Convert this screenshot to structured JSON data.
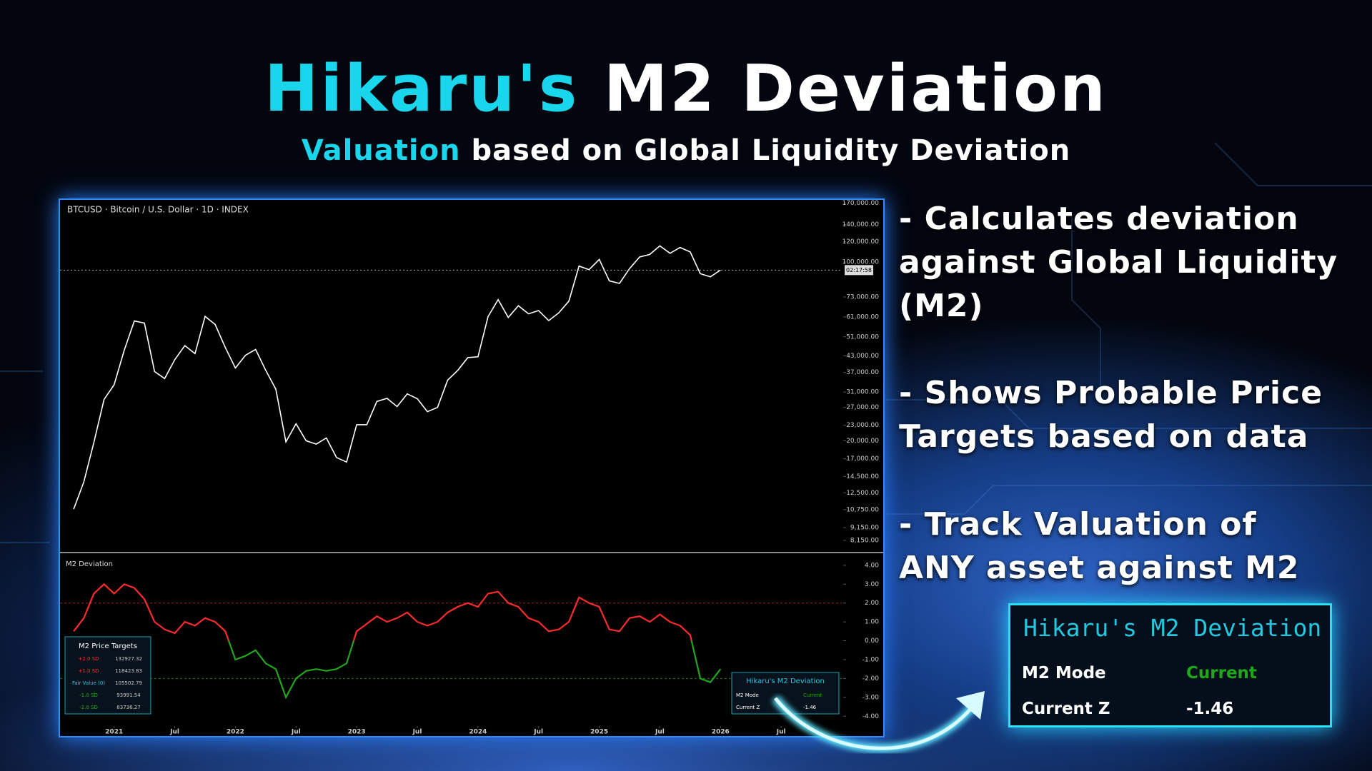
{
  "title": {
    "highlight": "Hikaru's",
    "rest": "M2 Deviation"
  },
  "subtitle": {
    "highlight": "Valuation",
    "rest": "based on Global Liquidity Deviation"
  },
  "features": [
    {
      "lines": [
        "- Calculates deviation",
        "against Global Liquidity",
        "(M2)"
      ]
    },
    {
      "lines": [
        "- Shows Probable Price",
        "Targets based on data"
      ]
    },
    {
      "lines": [
        "- Track Valuation of",
        "ANY asset against M2"
      ]
    }
  ],
  "price_chart": {
    "type": "line",
    "header": "BTCUSD · Bitcoin / U.S. Dollar · 1D · INDEX",
    "price_label": "02:17:58",
    "color": "#ffffff",
    "log_scale": true,
    "x": [
      "2020-09",
      "2020-10",
      "2020-11",
      "2020-12",
      "2021-01",
      "2021-02",
      "2021-03",
      "2021-04",
      "2021-05",
      "2021-06",
      "2021-07",
      "2021-08",
      "2021-09",
      "2021-10",
      "2021-11",
      "2021-12",
      "2022-01",
      "2022-02",
      "2022-03",
      "2022-04",
      "2022-05",
      "2022-06",
      "2022-07",
      "2022-08",
      "2022-09",
      "2022-10",
      "2022-11",
      "2022-12",
      "2023-01",
      "2023-02",
      "2023-03",
      "2023-04",
      "2023-05",
      "2023-06",
      "2023-07",
      "2023-08",
      "2023-09",
      "2023-10",
      "2023-11",
      "2023-12",
      "2024-01",
      "2024-02",
      "2024-03",
      "2024-04",
      "2024-05",
      "2024-06",
      "2024-07",
      "2024-08",
      "2024-09",
      "2024-10",
      "2024-11",
      "2024-12",
      "2025-01",
      "2025-02",
      "2025-03",
      "2025-04",
      "2025-05",
      "2025-06",
      "2025-07",
      "2025-08",
      "2025-09",
      "2025-10",
      "2025-11",
      "2025-12",
      "2026-01"
    ],
    "values": [
      10800,
      13800,
      19700,
      29000,
      33100,
      45200,
      58800,
      57700,
      37300,
      35000,
      41500,
      47100,
      43800,
      61300,
      57000,
      46300,
      38500,
      43200,
      45500,
      37700,
      31800,
      19800,
      23300,
      20000,
      19400,
      20500,
      17200,
      16500,
      23100,
      23100,
      28500,
      29300,
      27200,
      30500,
      29200,
      26000,
      27000,
      34500,
      37700,
      42300,
      42600,
      61200,
      71300,
      60700,
      67500,
      62700,
      64600,
      59000,
      63300,
      70300,
      96400,
      93400,
      102400,
      84400,
      82500,
      94200,
      104600,
      107100,
      115700,
      108200,
      114000,
      109500,
      90000,
      87500,
      93000
    ],
    "xlim": [
      "2020-08",
      "2027-01"
    ],
    "ylim": [
      7400,
      175000
    ],
    "yticks": [
      {
        "value": 170000,
        "label": "170,000.00"
      },
      {
        "value": 140000,
        "label": "140,000.00"
      },
      {
        "value": 120000,
        "label": "120,000.00"
      },
      {
        "value": 100000,
        "label": "100,000.00"
      },
      {
        "value": 73000,
        "label": "73,000.00"
      },
      {
        "value": 61000,
        "label": "61,000.00"
      },
      {
        "value": 51000,
        "label": "51,000.00"
      },
      {
        "value": 43000,
        "label": "43,000.00"
      },
      {
        "value": 37000,
        "label": "37,000.00"
      },
      {
        "value": 31000,
        "label": "31,000.00"
      },
      {
        "value": 27000,
        "label": "27,000.00"
      },
      {
        "value": 23000,
        "label": "23,000.00"
      },
      {
        "value": 20000,
        "label": "20,000.00"
      },
      {
        "value": 17000,
        "label": "17,000.00"
      },
      {
        "value": 14500,
        "label": "14,500.00"
      },
      {
        "value": 12500,
        "label": "12,500.00"
      },
      {
        "value": 10750,
        "label": "10,750.00"
      },
      {
        "value": 9150,
        "label": "9,150.00"
      },
      {
        "value": 8150,
        "label": "8,150.00"
      }
    ]
  },
  "deviation_chart": {
    "type": "line",
    "title": "M2 Deviation",
    "positive_color": "#ff2b2b",
    "negative_color": "#22a61c",
    "x": [
      "2020-09",
      "2020-10",
      "2020-11",
      "2020-12",
      "2021-01",
      "2021-02",
      "2021-03",
      "2021-04",
      "2021-05",
      "2021-06",
      "2021-07",
      "2021-08",
      "2021-09",
      "2021-10",
      "2021-11",
      "2021-12",
      "2022-01",
      "2022-02",
      "2022-03",
      "2022-04",
      "2022-05",
      "2022-06",
      "2022-07",
      "2022-08",
      "2022-09",
      "2022-10",
      "2022-11",
      "2022-12",
      "2023-01",
      "2023-02",
      "2023-03",
      "2023-04",
      "2023-05",
      "2023-06",
      "2023-07",
      "2023-08",
      "2023-09",
      "2023-10",
      "2023-11",
      "2023-12",
      "2024-01",
      "2024-02",
      "2024-03",
      "2024-04",
      "2024-05",
      "2024-06",
      "2024-07",
      "2024-08",
      "2024-09",
      "2024-10",
      "2024-11",
      "2024-12",
      "2025-01",
      "2025-02",
      "2025-03",
      "2025-04",
      "2025-05",
      "2025-06",
      "2025-07",
      "2025-08",
      "2025-09",
      "2025-10",
      "2025-11",
      "2025-12",
      "2026-01"
    ],
    "values": [
      0.5,
      1.2,
      2.5,
      3.0,
      2.5,
      3.0,
      2.8,
      2.2,
      1.0,
      0.6,
      0.4,
      1.0,
      0.8,
      1.2,
      1.0,
      0.5,
      -1.0,
      -0.8,
      -0.5,
      -1.2,
      -1.5,
      -3.0,
      -2.0,
      -1.6,
      -1.5,
      -1.6,
      -1.5,
      -1.2,
      0.5,
      0.9,
      1.3,
      1.0,
      1.2,
      1.5,
      1.0,
      0.8,
      1.0,
      1.5,
      1.8,
      2.0,
      1.8,
      2.5,
      2.6,
      2.0,
      1.8,
      1.2,
      1.0,
      0.5,
      0.6,
      1.0,
      2.3,
      2.0,
      1.8,
      0.6,
      0.5,
      1.2,
      1.3,
      1.0,
      1.4,
      1.0,
      0.8,
      0.3,
      -2.0,
      -2.2,
      -1.5
    ],
    "threshold_lines": [
      2,
      -2
    ],
    "xlim": [
      "2020-08",
      "2027-01"
    ],
    "ylim": [
      -5.05,
      4.6
    ],
    "yticks": [
      {
        "value": 4,
        "label": "4.00"
      },
      {
        "value": 3,
        "label": "3.00"
      },
      {
        "value": 2,
        "label": "2.00"
      },
      {
        "value": 1,
        "label": "1.00"
      },
      {
        "value": 0,
        "label": "0.00"
      },
      {
        "value": -1,
        "label": "-1.00"
      },
      {
        "value": -2,
        "label": "-2.00"
      },
      {
        "value": -3,
        "label": "-3.00"
      },
      {
        "value": -4,
        "label": "-4.00"
      }
    ],
    "xticks": [
      {
        "value": "2021-01",
        "label": "2021"
      },
      {
        "value": "2021-07",
        "label": "Jul"
      },
      {
        "value": "2022-01",
        "label": "2022"
      },
      {
        "value": "2022-07",
        "label": "Jul"
      },
      {
        "value": "2023-01",
        "label": "2023"
      },
      {
        "value": "2023-07",
        "label": "Jul"
      },
      {
        "value": "2024-01",
        "label": "2024"
      },
      {
        "value": "2024-07",
        "label": "Jul"
      },
      {
        "value": "2025-01",
        "label": "2025"
      },
      {
        "value": "2025-07",
        "label": "Jul"
      },
      {
        "value": "2026-01",
        "label": "2026"
      },
      {
        "value": "2026-07",
        "label": "Jul"
      }
    ]
  },
  "price_targets": {
    "title": "M2 Price Targets",
    "rows": [
      [
        "+2.0 SD",
        "132927.32"
      ],
      [
        "+1.0 SD",
        "118423.83"
      ],
      [
        "Fair Value (0)",
        "105502.79"
      ],
      [
        "-1.0 SD",
        "93991.54"
      ],
      [
        "-2.0 SD",
        "83736.27"
      ]
    ]
  },
  "status_table": {
    "title": "Hikaru's M2 Deviation",
    "rows": [
      [
        "M2 Mode",
        "Current"
      ],
      [
        "Current Z",
        "-1.46"
      ]
    ]
  }
}
